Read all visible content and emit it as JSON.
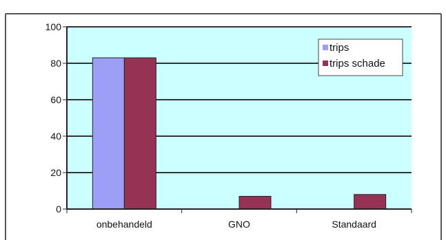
{
  "chart_data": {
    "type": "bar",
    "categories": [
      "onbehandeld",
      "GNO",
      "Standaard"
    ],
    "series": [
      {
        "name": "trips",
        "values": [
          83,
          0,
          0
        ],
        "color": "#9d9ff7"
      },
      {
        "name": "trips schade",
        "values": [
          83,
          7,
          8
        ],
        "color": "#963254"
      }
    ],
    "ylim": [
      0,
      100
    ],
    "yticks": [
      0,
      20,
      40,
      60,
      80,
      100
    ],
    "grid": true,
    "legend": "top-right",
    "plot_background": "#ccffff",
    "gridline_color": "#333333"
  }
}
